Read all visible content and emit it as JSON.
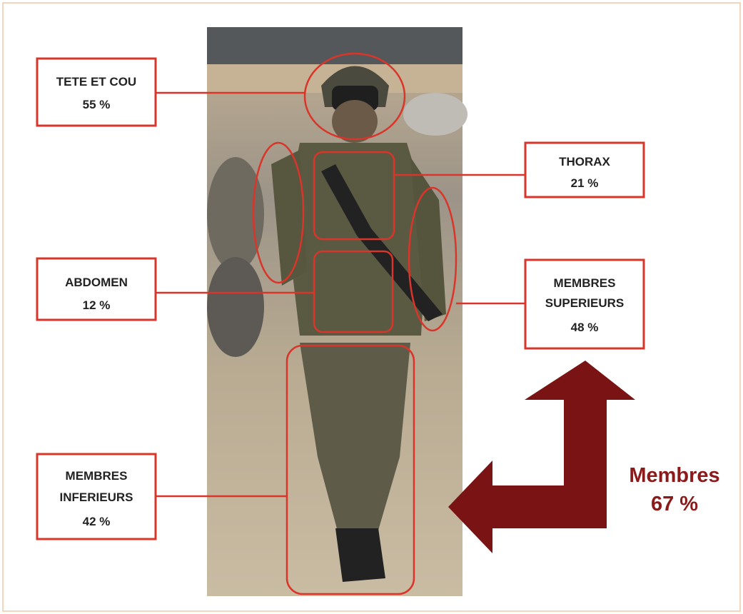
{
  "labels": [
    {
      "name": [
        "TETE ET COU"
      ],
      "value": "55 %"
    },
    {
      "name": [
        "THORAX"
      ],
      "value": "21 %"
    },
    {
      "name": [
        "ABDOMEN"
      ],
      "value": "12 %"
    },
    {
      "name": [
        "MEMBRES",
        "SUPERIEURS"
      ],
      "value": "48 %"
    },
    {
      "name": [
        "MEMBRES",
        "INFERIEURS"
      ],
      "value": "42 %"
    }
  ],
  "summary": {
    "name": "Membres",
    "value": "67 %"
  }
}
